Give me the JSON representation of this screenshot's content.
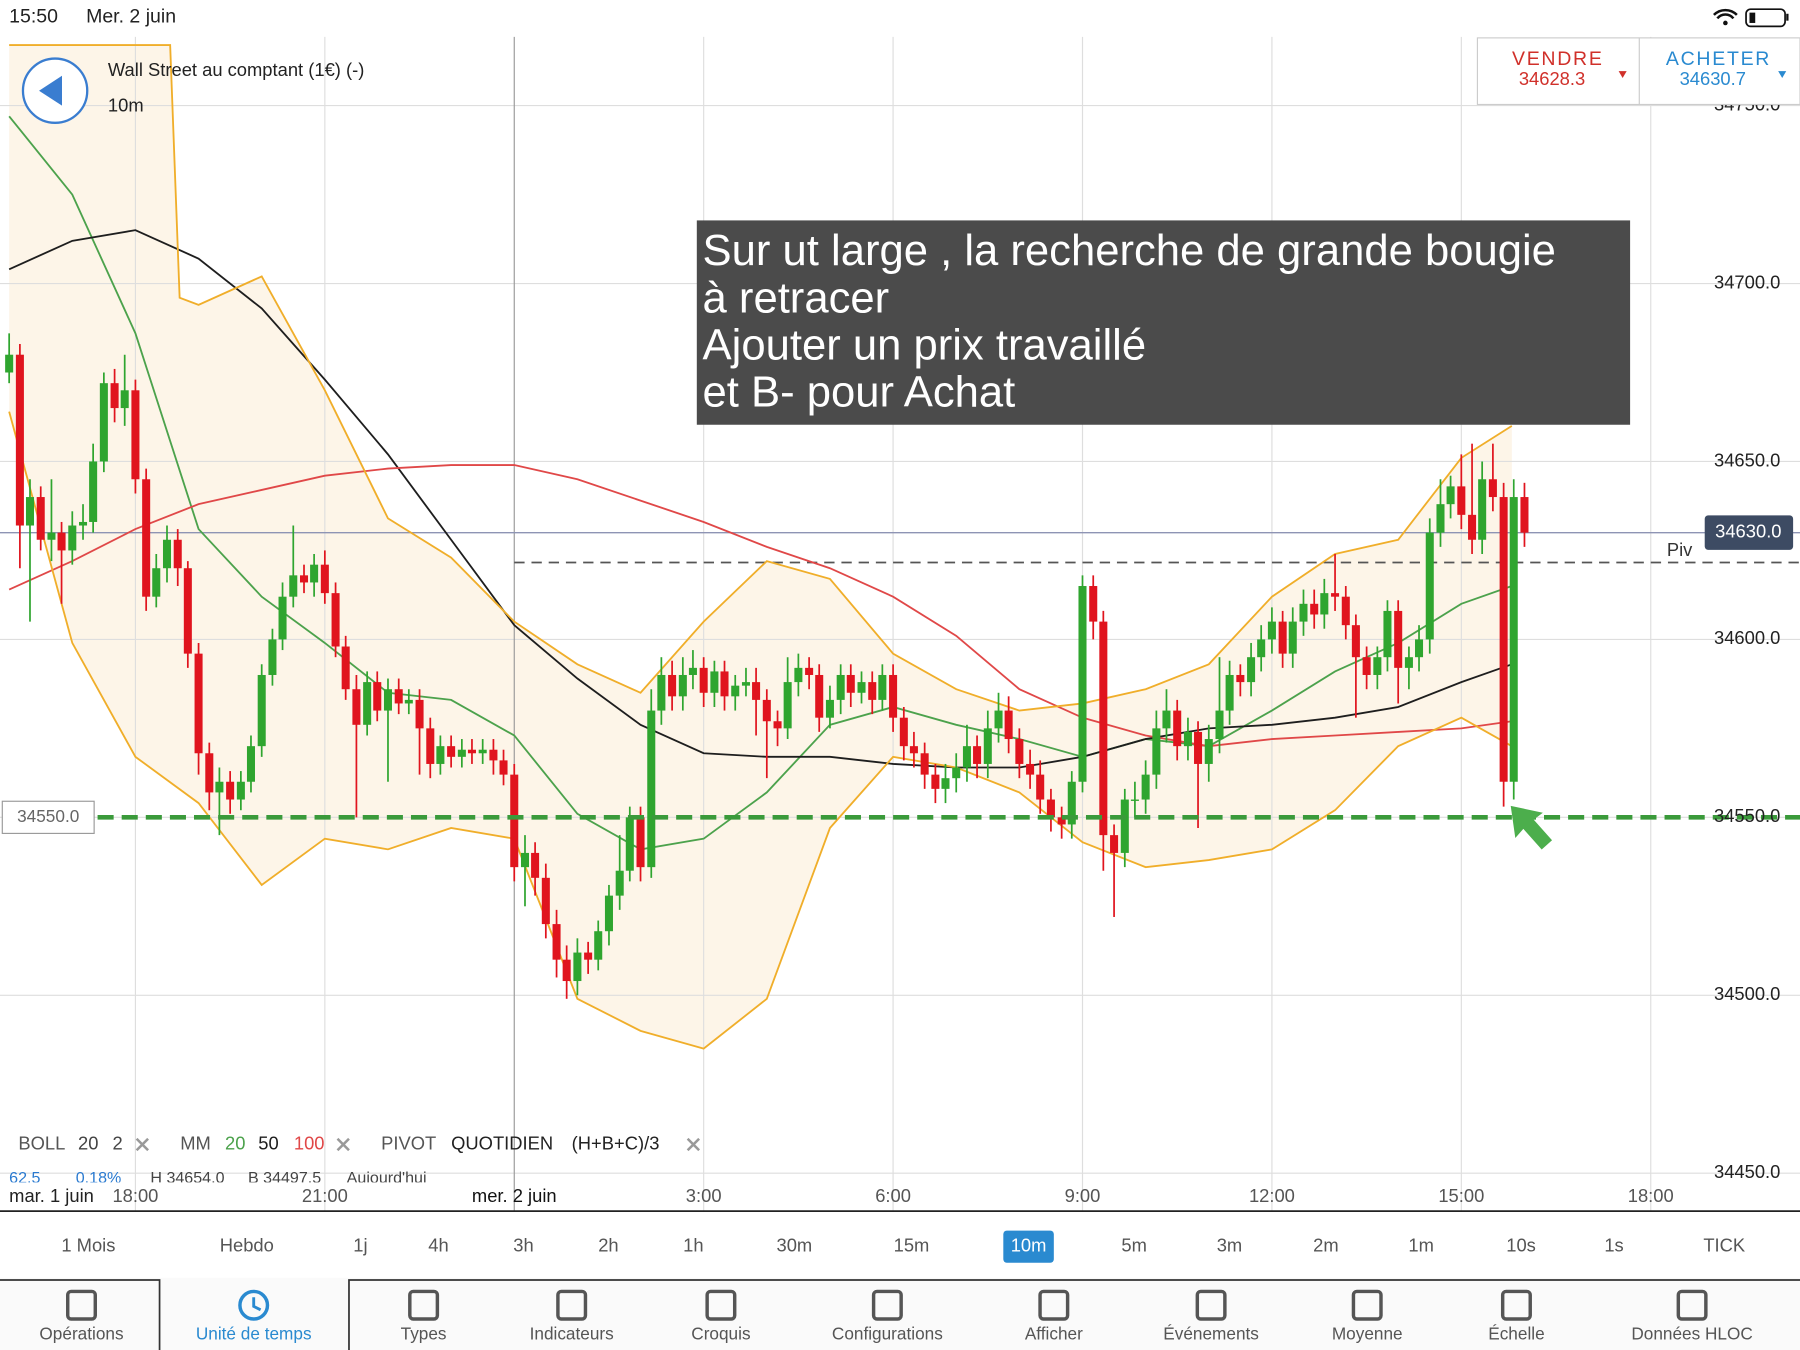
{
  "status_bar": {
    "time": "15:50",
    "date": "Mer. 2 juin"
  },
  "header": {
    "instrument": "Wall Street au comptant (1€) (-)",
    "timeframe": "10m"
  },
  "quote": {
    "sell_label": "VENDRE",
    "sell_price": "34628.3",
    "buy_label": "ACHETER",
    "buy_price": "34630.7"
  },
  "annotation": {
    "lines": [
      "Sur ut large , la recherche de grande bougie",
      "à retracer",
      "Ajouter un prix travaillé",
      "et B- pour Achat"
    ]
  },
  "indicators": [
    {
      "label": "BOLL",
      "params": [
        "20",
        "2"
      ]
    },
    {
      "label": "MM",
      "params": [
        "20",
        "50",
        "100"
      ]
    },
    {
      "label": "PIVOT",
      "params": [
        "QUOTIDIEN",
        "(H+B+C)/3"
      ]
    }
  ],
  "stats_row": [
    "62.5",
    "0.18%",
    "H 34654.0",
    "B 34497.5",
    "Aujourd'hui"
  ],
  "chart_data": {
    "type": "candlestick",
    "x_start_label": "mar. 1 juin",
    "xlim": [
      15.855,
      44.364
    ],
    "xticks": [
      {
        "value": 18,
        "label": "18:00"
      },
      {
        "value": 21,
        "label": "21:00"
      },
      {
        "value": 24,
        "label": "mer. 2 juin"
      },
      {
        "value": 27,
        "label": "3:00"
      },
      {
        "value": 30,
        "label": "6:00"
      },
      {
        "value": 33,
        "label": "9:00"
      },
      {
        "value": 36,
        "label": "12:00"
      },
      {
        "value": 39,
        "label": "15:00"
      },
      {
        "value": 42,
        "label": "18:00"
      }
    ],
    "ylim": [
      34439.35,
      34769.35
    ],
    "yticks": [
      {
        "value": 34450,
        "label": "34450.0"
      },
      {
        "value": 34500,
        "label": "34500.0"
      },
      {
        "value": 34550,
        "label": "34550.0"
      },
      {
        "value": 34600,
        "label": "34600.0"
      },
      {
        "value": 34650,
        "label": "34650.0"
      },
      {
        "value": 34700,
        "label": "34700.0"
      },
      {
        "value": 34750,
        "label": "34750.0"
      }
    ],
    "grid": true,
    "up_color": "#2fa52f",
    "down_color": "#e0141e",
    "x": [
      16,
      16.17,
      16.33,
      16.5,
      16.67,
      16.83,
      17,
      17.17,
      17.33,
      17.5,
      17.67,
      17.83,
      18,
      18.17,
      18.33,
      18.5,
      18.67,
      18.83,
      19,
      19.17,
      19.33,
      19.5,
      19.67,
      19.83,
      20,
      20.17,
      20.33,
      20.5,
      20.67,
      20.83,
      21,
      21.17,
      21.33,
      21.5,
      21.67,
      21.83,
      22,
      22.17,
      22.33,
      22.5,
      22.67,
      22.83,
      23,
      23.17,
      23.33,
      23.5,
      23.67,
      23.83,
      24,
      24.17,
      24.33,
      24.5,
      24.67,
      24.83,
      25,
      25.17,
      25.33,
      25.5,
      25.67,
      25.83,
      26,
      26.17,
      26.33,
      26.5,
      26.67,
      26.83,
      27,
      27.17,
      27.33,
      27.5,
      27.67,
      27.83,
      28,
      28.17,
      28.33,
      28.5,
      28.67,
      28.83,
      29,
      29.17,
      29.33,
      29.5,
      29.67,
      29.83,
      30,
      30.17,
      30.33,
      30.5,
      30.67,
      30.83,
      31,
      31.17,
      31.33,
      31.5,
      31.67,
      31.83,
      32,
      32.17,
      32.33,
      32.5,
      32.67,
      32.83,
      33,
      33.17,
      33.33,
      33.5,
      33.67,
      33.83,
      34,
      34.17,
      34.33,
      34.5,
      34.67,
      34.83,
      35,
      35.17,
      35.33,
      35.5,
      35.67,
      35.83,
      36,
      36.17,
      36.33,
      36.5,
      36.67,
      36.83,
      37,
      37.17,
      37.33,
      37.5,
      37.67,
      37.83,
      38,
      38.17,
      38.33,
      38.5,
      38.67,
      38.83,
      39,
      39.17,
      39.33,
      39.5,
      39.67,
      39.83,
      40
    ],
    "open": [
      34675,
      34680,
      34632,
      34640,
      34628,
      34630,
      34625,
      34632,
      34633,
      34650,
      34672,
      34665,
      34670,
      34645,
      34612,
      34620,
      34628,
      34620,
      34596,
      34568,
      34557,
      34560,
      34555,
      34560,
      34570,
      34590,
      34600,
      34612,
      34618,
      34616,
      34621,
      34613,
      34598,
      34586,
      34576,
      34588,
      34580,
      34586,
      34582,
      34583,
      34575,
      34565,
      34570,
      34567,
      34569,
      34568,
      34569,
      34566,
      34562,
      34536,
      34540,
      34533,
      34520,
      34510,
      34504,
      34512,
      34510,
      34518,
      34528,
      34535,
      34550,
      34536,
      34580,
      34590,
      34584,
      34590,
      34592,
      34585,
      34591,
      34584,
      34587,
      34588,
      34583,
      34577,
      34575,
      34588,
      34592,
      34590,
      34578,
      34583,
      34590,
      34585,
      34588,
      34583,
      34590,
      34578,
      34570,
      34568,
      34562,
      34558,
      34561,
      34564,
      34570,
      34565,
      34575,
      34580,
      34572,
      34565,
      34562,
      34555,
      34550,
      34548,
      34560,
      34615,
      34605,
      34545,
      34540,
      34555,
      34555,
      34562,
      34575,
      34580,
      34570,
      34574,
      34565,
      34572,
      34580,
      34590,
      34588,
      34595,
      34600,
      34605,
      34596,
      34605,
      34610,
      34607,
      34613,
      34612,
      34604,
      34595,
      34590,
      34595,
      34608,
      34592,
      34595,
      34600,
      34630,
      34638,
      34643,
      34635,
      34628,
      34645,
      34640,
      34560,
      34640
    ],
    "high": [
      34686,
      34683,
      34645,
      34643,
      34645,
      34633,
      34636,
      34638,
      34655,
      34675,
      34676,
      34680,
      34673,
      34648,
      34624,
      34632,
      34631,
      34622,
      34599,
      34571,
      34564,
      34563,
      34563,
      34573,
      34593,
      34603,
      34616,
      34632,
      34621,
      34624,
      34625,
      34616,
      34601,
      34590,
      34591,
      34591,
      34589,
      34589,
      34586,
      34586,
      34578,
      34573,
      34573,
      34572,
      34572,
      34572,
      34572,
      34569,
      34565,
      34545,
      34543,
      34537,
      34524,
      34514,
      34516,
      34515,
      34521,
      34531,
      34545,
      34553,
      34553,
      34586,
      34595,
      34594,
      34595,
      34597,
      34595,
      34594,
      34594,
      34590,
      34592,
      34592,
      34586,
      34580,
      34595,
      34596,
      34595,
      34593,
      34587,
      34593,
      34593,
      34591,
      34591,
      34593,
      34593,
      34581,
      34574,
      34571,
      34565,
      34565,
      34568,
      34576,
      34573,
      34580,
      34585,
      34584,
      34575,
      34569,
      34566,
      34558,
      34553,
      34563,
      34618,
      34618,
      34608,
      34548,
      34558,
      34560,
      34566,
      34580,
      34586,
      34583,
      34578,
      34577,
      34576,
      34595,
      34594,
      34593,
      34599,
      34604,
      34609,
      34608,
      34609,
      34614,
      34614,
      34617,
      34624,
      34615,
      34607,
      34598,
      34598,
      34611,
      34611,
      34598,
      34604,
      34634,
      34645,
      34646,
      34652,
      34655,
      34650,
      34655,
      34644,
      34645,
      34644
    ],
    "low": [
      34672,
      34620,
      34605,
      34625,
      34622,
      34610,
      34621,
      34628,
      34630,
      34647,
      34661,
      34660,
      34641,
      34608,
      34609,
      34616,
      34615,
      34592,
      34562,
      34552,
      34545,
      34551,
      34552,
      34557,
      34567,
      34587,
      34597,
      34609,
      34613,
      34612,
      34610,
      34595,
      34583,
      34550,
      34573,
      34577,
      34560,
      34579,
      34579,
      34562,
      34561,
      34562,
      34564,
      34564,
      34565,
      34565,
      34562,
      34559,
      34532,
      34525,
      34528,
      34516,
      34505,
      34499,
      34500,
      34506,
      34507,
      34514,
      34524,
      34532,
      34532,
      34533,
      34576,
      34580,
      34580,
      34586,
      34581,
      34581,
      34580,
      34580,
      34584,
      34573,
      34561,
      34570,
      34572,
      34584,
      34586,
      34574,
      34575,
      34579,
      34581,
      34582,
      34579,
      34580,
      34574,
      34566,
      34564,
      34558,
      34554,
      34554,
      34557,
      34560,
      34561,
      34561,
      34571,
      34568,
      34561,
      34558,
      34551,
      34546,
      34544,
      34544,
      34557,
      34600,
      34535,
      34522,
      34536,
      34550,
      34551,
      34558,
      34571,
      34566,
      34566,
      34547,
      34560,
      34568,
      34576,
      34584,
      34584,
      34591,
      34596,
      34592,
      34592,
      34601,
      34603,
      34603,
      34608,
      34600,
      34578,
      34586,
      34586,
      34591,
      34582,
      34586,
      34591,
      34596,
      34626,
      34634,
      34631,
      34624,
      34624,
      34636,
      34553,
      34555,
      34626
    ],
    "close": [
      34680,
      34632,
      34640,
      34628,
      34630,
      34625,
      34632,
      34633,
      34650,
      34672,
      34665,
      34670,
      34645,
      34612,
      34620,
      34628,
      34620,
      34596,
      34568,
      34557,
      34560,
      34555,
      34560,
      34570,
      34590,
      34600,
      34612,
      34618,
      34616,
      34621,
      34613,
      34598,
      34586,
      34576,
      34588,
      34580,
      34586,
      34582,
      34583,
      34575,
      34565,
      34570,
      34567,
      34569,
      34568,
      34569,
      34566,
      34562,
      34536,
      34540,
      34533,
      34520,
      34510,
      34504,
      34512,
      34510,
      34518,
      34528,
      34535,
      34550,
      34536,
      34580,
      34590,
      34584,
      34590,
      34592,
      34585,
      34591,
      34584,
      34587,
      34588,
      34583,
      34577,
      34575,
      34588,
      34592,
      34590,
      34578,
      34583,
      34590,
      34585,
      34588,
      34583,
      34590,
      34578,
      34570,
      34568,
      34562,
      34558,
      34561,
      34564,
      34570,
      34565,
      34575,
      34580,
      34572,
      34565,
      34562,
      34555,
      34550,
      34548,
      34560,
      34615,
      34605,
      34545,
      34540,
      34555,
      34555,
      34562,
      34575,
      34580,
      34570,
      34574,
      34565,
      34572,
      34580,
      34590,
      34588,
      34595,
      34600,
      34605,
      34596,
      34605,
      34610,
      34607,
      34613,
      34612,
      34604,
      34595,
      34590,
      34595,
      34608,
      34592,
      34595,
      34600,
      34630,
      34638,
      34643,
      34635,
      34628,
      34645,
      34640,
      34560,
      34640,
      34630
    ],
    "band_fill": "#fdf5e8",
    "lines": [
      {
        "name": "20",
        "color": "#4ca24c",
        "x": [
          16,
          17,
          18,
          19,
          20,
          21,
          22,
          23,
          24,
          25,
          26,
          27,
          28,
          29,
          30,
          31,
          32,
          33,
          34,
          35,
          36,
          37,
          38,
          39,
          39.8
        ],
        "values": [
          34747,
          34725,
          34686,
          34631,
          34612,
          34599,
          34585,
          34583,
          34573,
          34551,
          34541,
          34544,
          34557,
          34576,
          34581,
          34576,
          34572,
          34567,
          34572,
          34570,
          34580,
          34591,
          34599,
          34610,
          34615
        ]
      },
      {
        "name": "50",
        "color": "#1e1e1e",
        "x": [
          16,
          17,
          18,
          19,
          20,
          21,
          22,
          23,
          24,
          25,
          26,
          27,
          28,
          29,
          30,
          31,
          32,
          33,
          34,
          35,
          36,
          37,
          38,
          39,
          39.8
        ],
        "values": [
          34704,
          34712,
          34715,
          34707,
          34693,
          34673,
          34652,
          34628,
          34604,
          34589,
          34576,
          34568,
          34567,
          34567,
          34565,
          34564,
          34564,
          34567,
          34572,
          34575,
          34576,
          34578,
          34581,
          34588,
          34593
        ]
      },
      {
        "name": "100",
        "color": "#e04848",
        "x": [
          16,
          17,
          18,
          19,
          20,
          21,
          22,
          23,
          24,
          25,
          26,
          27,
          28,
          29,
          30,
          31,
          32,
          33,
          34,
          35,
          36,
          37,
          38,
          39,
          39.8
        ],
        "values": [
          34614,
          34622,
          34631,
          34638,
          34642,
          34646,
          34648,
          34649,
          34649,
          34645,
          34639,
          34633,
          34626,
          34620,
          34612,
          34601,
          34586,
          34578,
          34573,
          34570,
          34572,
          34573,
          34574,
          34575,
          34577
        ]
      },
      {
        "color": "#f0ae2a",
        "x": [
          16,
          17,
          18,
          18.55,
          18.7,
          19,
          20,
          21,
          22,
          23,
          24,
          25,
          26,
          27,
          28,
          29,
          30,
          31,
          32,
          33,
          34,
          35,
          36,
          37,
          38,
          39,
          39.8
        ],
        "values": [
          34767,
          34767,
          34767,
          34767,
          34696,
          34694,
          34702,
          34670,
          34634,
          34623,
          34605,
          34593,
          34585,
          34605,
          34622,
          34617,
          34596,
          34586,
          34580,
          34582,
          34586,
          34593,
          34612,
          34624,
          34628,
          34651,
          34660
        ]
      },
      {
        "color": "#f0ae2a",
        "x": [
          16,
          17,
          18,
          19,
          20,
          21,
          22,
          23,
          24,
          25,
          26,
          27,
          28,
          29,
          30,
          31,
          32,
          33,
          34,
          35,
          36,
          37,
          38,
          39,
          39.8
        ],
        "values": [
          34664,
          34599,
          34567,
          34554,
          34531,
          34544,
          34541,
          34547,
          34544,
          34499,
          34490,
          34485,
          34499,
          34547,
          34567,
          34564,
          34557,
          34543,
          34536,
          34538,
          34541,
          34552,
          34570,
          34578,
          34570
        ]
      }
    ],
    "hlines": [
      {
        "value": 34630,
        "label": "34630.0",
        "color": "#8e94b4"
      },
      {
        "value": 34621.6,
        "label": "Piv",
        "color": "#555555",
        "dash": true
      },
      {
        "value": 34550,
        "label": "34550.0",
        "color": "#3a9a3a",
        "dash": true
      }
    ]
  },
  "timeframes": {
    "items": [
      "1 Mois",
      "Hebdo",
      "1j",
      "4h",
      "3h",
      "2h",
      "1h",
      "30m",
      "15m",
      "10m",
      "5m",
      "3m",
      "2m",
      "1m",
      "10s",
      "1s",
      "TICK"
    ],
    "selected": "10m"
  },
  "toolbar": {
    "items": [
      "Opérations",
      "Unité de temps",
      "Types",
      "Indicateurs",
      "Croquis",
      "Configurations",
      "Afficher",
      "Événements",
      "Moyenne",
      "Échelle",
      "Données HLOC"
    ],
    "selected": "Unité de temps"
  }
}
